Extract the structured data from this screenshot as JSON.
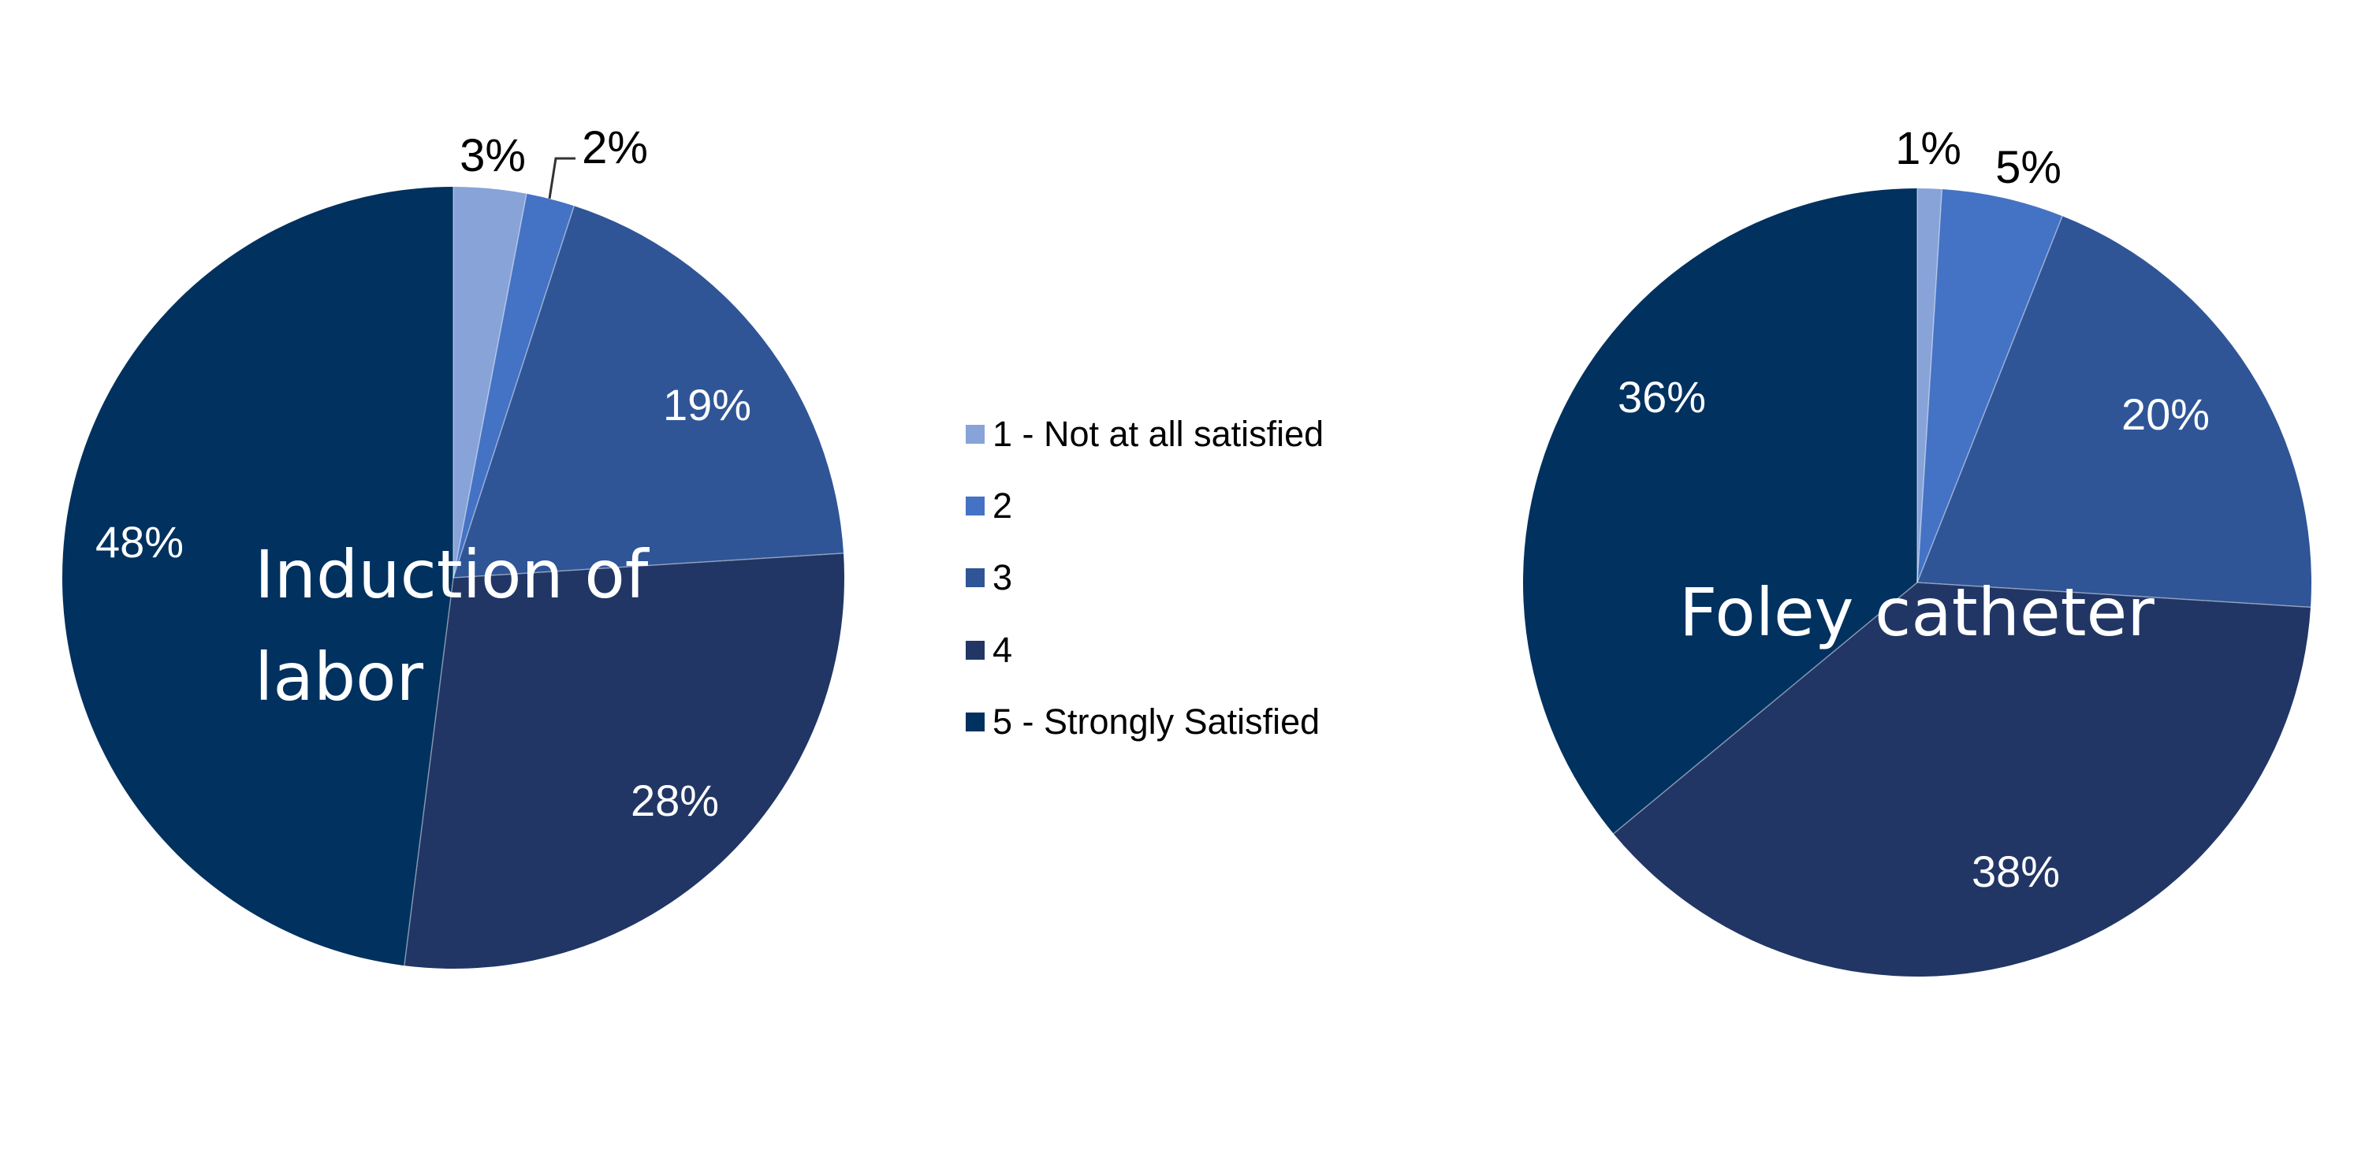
{
  "colors": {
    "level_1": "#87a3d8",
    "level_2": "#4472c4",
    "level_3": "#2f5597",
    "level_4": "#213665",
    "level_5": "#00315f",
    "background": "#ffffff",
    "inside_label": "#ffffff",
    "outside_label": "#000000"
  },
  "legend": {
    "items": [
      {
        "label": "1 - Not at all satisfied",
        "color": "#87a3d8"
      },
      {
        "label": "2",
        "color": "#4472c4"
      },
      {
        "label": "3",
        "color": "#2f5597"
      },
      {
        "label": "4",
        "color": "#213665"
      },
      {
        "label": "5 - Strongly Satisfied",
        "color": "#00315f"
      }
    ]
  },
  "charts": [
    {
      "title_line1": "Induction of",
      "title_line2": "labor"
    },
    {
      "title_line1": "Foley catheter",
      "title_line2": ""
    }
  ],
  "chart_data": [
    {
      "type": "pie",
      "title": "Induction of labor",
      "categories": [
        "1 - Not at all satisfied",
        "2",
        "3",
        "4",
        "5 - Strongly Satisfied"
      ],
      "values": [
        3,
        2,
        19,
        28,
        48
      ],
      "labels": [
        "3%",
        "2%",
        "19%",
        "28%",
        "48%"
      ],
      "unit": "%",
      "start_angle": "12 o'clock, clockwise",
      "legend_position": "right (shared, center of image)"
    },
    {
      "type": "pie",
      "title": "Foley catheter",
      "categories": [
        "1 - Not at all satisfied",
        "2",
        "3",
        "4",
        "5 - Strongly Satisfied"
      ],
      "values": [
        1,
        5,
        20,
        38,
        36
      ],
      "labels": [
        "1%",
        "5%",
        "20%",
        "38%",
        "36%"
      ],
      "unit": "%",
      "start_angle": "12 o'clock, clockwise",
      "legend_position": "left (shared, center of image)"
    }
  ]
}
